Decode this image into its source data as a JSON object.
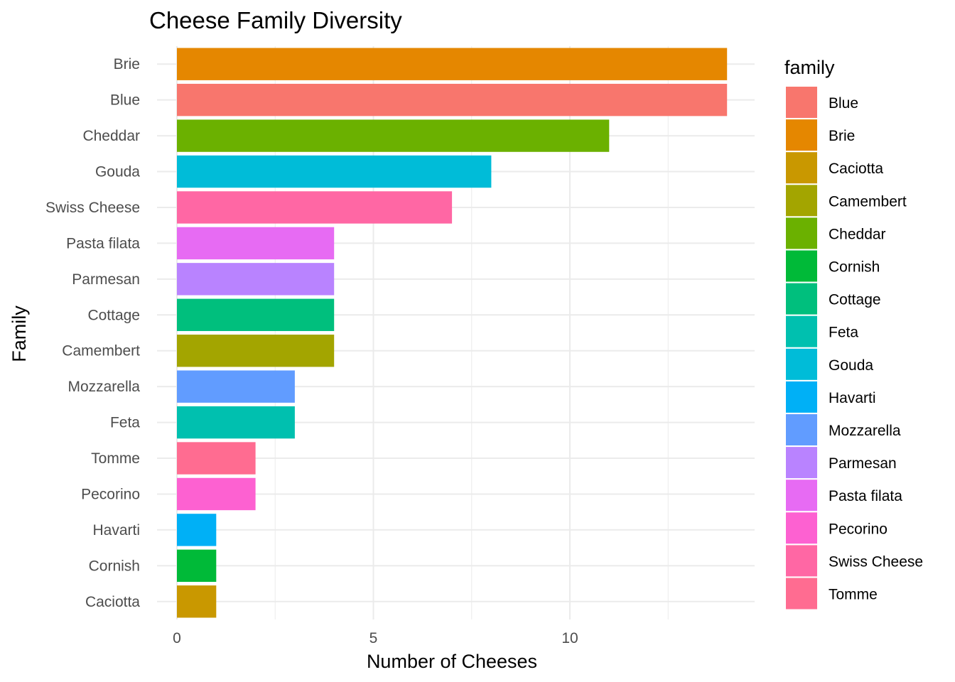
{
  "chart_data": {
    "type": "bar",
    "orientation": "horizontal",
    "title": "Cheese Family Diversity",
    "xlabel": "Number of Cheeses",
    "ylabel": "Family",
    "xlim": [
      0,
      14.7
    ],
    "x_ticks": [
      0,
      5,
      10
    ],
    "grid": true,
    "legend": {
      "title": "family",
      "placement": "right",
      "entries": [
        "Blue",
        "Brie",
        "Caciotta",
        "Camembert",
        "Cheddar",
        "Cornish",
        "Cottage",
        "Feta",
        "Gouda",
        "Havarti",
        "Mozzarella",
        "Parmesan",
        "Pasta filata",
        "Pecorino",
        "Swiss Cheese",
        "Tomme"
      ]
    },
    "categories": [
      "Brie",
      "Blue",
      "Cheddar",
      "Gouda",
      "Swiss Cheese",
      "Pasta filata",
      "Parmesan",
      "Cottage",
      "Camembert",
      "Mozzarella",
      "Feta",
      "Tomme",
      "Pecorino",
      "Havarti",
      "Cornish",
      "Caciotta"
    ],
    "values": [
      14,
      14,
      11,
      8,
      7,
      4,
      4,
      4,
      4,
      3,
      3,
      2,
      2,
      1,
      1,
      1
    ],
    "colors": {
      "Blue": "#F8766D",
      "Brie": "#E58700",
      "Caciotta": "#C99800",
      "Camembert": "#A3A500",
      "Cheddar": "#6BB100",
      "Cornish": "#00BA38",
      "Cottage": "#00BF7D",
      "Feta": "#00C0AF",
      "Gouda": "#00BCD8",
      "Havarti": "#00B0F6",
      "Mozzarella": "#619CFF",
      "Parmesan": "#B983FF",
      "Pasta filata": "#E76BF3",
      "Pecorino": "#FD61D1",
      "Swiss Cheese": "#FF67A4",
      "Tomme": "#FF6C91"
    }
  }
}
